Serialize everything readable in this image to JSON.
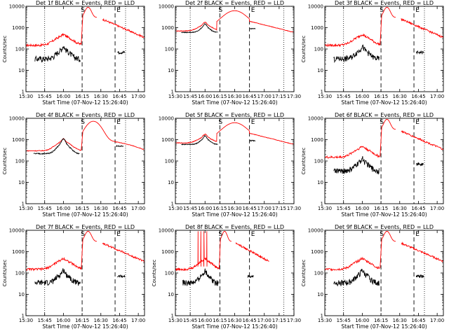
{
  "chart_data": [
    {
      "type": "line",
      "title": "Det 1f BLACK = Events, RED = LLD",
      "xlabel": "Start Time (07-Nov-12 15:26:40)",
      "ylabel": "Counts/sec",
      "y_scale": "log",
      "ylim": [
        1,
        10000
      ],
      "xlim": [
        15.5,
        17.083
      ],
      "xticks": [
        "15:30",
        "15:45",
        "16:00",
        "16:15",
        "16:30",
        "16:45",
        "17:00"
      ],
      "markers": [
        "S",
        "E"
      ],
      "dotted_x": [
        15.75,
        16.83
      ],
      "dashed_x": [
        16.25,
        16.69
      ],
      "shape": "A",
      "series": [
        {
          "name": "RED = LLD",
          "color": "#ff0000"
        },
        {
          "name": "BLACK = Events",
          "color": "#000000"
        }
      ]
    },
    {
      "type": "line",
      "title": "Det 2f BLACK = Events, RED = LLD",
      "xlabel": "Start Time (07-Nov-12 15:26:40)",
      "ylabel": "",
      "y_scale": "log",
      "ylim": [
        1,
        10000
      ],
      "xlim": [
        15.5,
        17.5
      ],
      "xticks": [
        "15:30",
        "15:45",
        "16:00",
        "16:15",
        "16:30",
        "16:45",
        "17:00",
        "17:15",
        "17:30"
      ],
      "markers": [
        "S",
        "E"
      ],
      "dotted_x": [
        15.75,
        17.33
      ],
      "dashed_x": [
        16.25,
        16.75
      ],
      "shape": "B",
      "series": [
        {
          "name": "RED = LLD",
          "color": "#ff0000"
        },
        {
          "name": "BLACK = Events",
          "color": "#000000"
        }
      ]
    },
    {
      "type": "line",
      "title": "Det 3f BLACK = Events, RED = LLD",
      "xlabel": "Start Time (07-Nov-12 15:26:40)",
      "ylabel": "Counts/sec",
      "y_scale": "log",
      "ylim": [
        1,
        10000
      ],
      "xlim": [
        15.5,
        17.083
      ],
      "xticks": [
        "15:30",
        "15:45",
        "16:00",
        "16:15",
        "16:30",
        "16:45",
        "17:00"
      ],
      "markers": [
        "S",
        "E"
      ],
      "dotted_x": [
        15.75,
        16.83
      ],
      "dashed_x": [
        16.25,
        16.69
      ],
      "shape": "A",
      "series": [
        {
          "name": "RED = LLD",
          "color": "#ff0000"
        },
        {
          "name": "BLACK = Events",
          "color": "#000000"
        }
      ]
    },
    {
      "type": "line",
      "title": "Det 4f BLACK = Events, RED = LLD",
      "xlabel": "Start Time (07-Nov-12 15:26:40)",
      "ylabel": "Counts/sec",
      "y_scale": "log",
      "ylim": [
        1,
        10000
      ],
      "xlim": [
        15.5,
        17.083
      ],
      "xticks": [
        "15:30",
        "15:45",
        "16:00",
        "16:15",
        "16:30",
        "16:45",
        "17:00"
      ],
      "markers": [
        "S",
        "E"
      ],
      "dotted_x": [
        15.75,
        16.83
      ],
      "dashed_x": [
        16.25,
        16.69
      ],
      "shape": "C",
      "series": [
        {
          "name": "RED = LLD",
          "color": "#ff0000"
        },
        {
          "name": "BLACK = Events",
          "color": "#000000"
        }
      ]
    },
    {
      "type": "line",
      "title": "Det 5f BLACK = Events, RED = LLD",
      "xlabel": "Start Time (07-Nov-12 15:26:40)",
      "ylabel": "",
      "y_scale": "log",
      "ylim": [
        1,
        10000
      ],
      "xlim": [
        15.5,
        17.5
      ],
      "xticks": [
        "15:30",
        "15:45",
        "16:00",
        "16:15",
        "16:30",
        "16:45",
        "17:00",
        "17:15",
        "17:30"
      ],
      "markers": [
        "S",
        "E"
      ],
      "dotted_x": [
        15.75,
        17.33
      ],
      "dashed_x": [
        16.25,
        16.75
      ],
      "shape": "B",
      "series": [
        {
          "name": "RED = LLD",
          "color": "#ff0000"
        },
        {
          "name": "BLACK = Events",
          "color": "#000000"
        }
      ]
    },
    {
      "type": "line",
      "title": "Det 6f BLACK = Events, RED = LLD",
      "xlabel": "Start Time (07-Nov-12 15:26:40)",
      "ylabel": "Counts/sec",
      "y_scale": "log",
      "ylim": [
        1,
        10000
      ],
      "xlim": [
        15.5,
        17.083
      ],
      "xticks": [
        "15:30",
        "15:45",
        "16:00",
        "16:15",
        "16:30",
        "16:45",
        "17:00"
      ],
      "markers": [
        "S",
        "E"
      ],
      "dotted_x": [
        15.75,
        16.83
      ],
      "dashed_x": [
        16.25,
        16.69
      ],
      "shape": "A",
      "series": [
        {
          "name": "RED = LLD",
          "color": "#ff0000"
        },
        {
          "name": "BLACK = Events",
          "color": "#000000"
        }
      ]
    },
    {
      "type": "line",
      "title": "Det 7f BLACK = Events, RED = LLD",
      "xlabel": "Start Time (07-Nov-12 15:26:40)",
      "ylabel": "Counts/sec",
      "y_scale": "log",
      "ylim": [
        1,
        10000
      ],
      "xlim": [
        15.5,
        17.083
      ],
      "xticks": [
        "15:30",
        "15:45",
        "16:00",
        "16:15",
        "16:30",
        "16:45",
        "17:00"
      ],
      "markers": [
        "S",
        "E"
      ],
      "dotted_x": [
        15.75,
        16.83
      ],
      "dashed_x": [
        16.25,
        16.69
      ],
      "shape": "A",
      "series": [
        {
          "name": "RED = LLD",
          "color": "#ff0000"
        },
        {
          "name": "BLACK = Events",
          "color": "#000000"
        }
      ]
    },
    {
      "type": "line",
      "title": "Det 8f BLACK = Events, RED = LLD",
      "xlabel": "Start Time (07-Nov-12 15:26:40)",
      "ylabel": "Counts/sec",
      "y_scale": "log",
      "ylim": [
        1,
        10000
      ],
      "xlim": [
        15.5,
        17.5
      ],
      "xticks": [
        "15:30",
        "15:45",
        "16:00",
        "16:15",
        "16:30",
        "16:45",
        "17:00",
        "17:15",
        "17:30"
      ],
      "markers": [
        "S",
        "E"
      ],
      "dotted_x": [
        15.75,
        17.33
      ],
      "dashed_x": [
        16.25,
        16.75
      ],
      "shape": "D",
      "series": [
        {
          "name": "RED = LLD",
          "color": "#ff0000"
        },
        {
          "name": "BLACK = Events",
          "color": "#000000"
        }
      ]
    },
    {
      "type": "line",
      "title": "Det 9f BLACK = Events, RED = LLD",
      "xlabel": "Start Time (07-Nov-12 15:26:40)",
      "ylabel": "Counts/sec",
      "y_scale": "log",
      "ylim": [
        1,
        10000
      ],
      "xlim": [
        15.5,
        17.083
      ],
      "xticks": [
        "15:30",
        "15:45",
        "16:00",
        "16:15",
        "16:30",
        "16:45",
        "17:00"
      ],
      "markers": [
        "S",
        "E"
      ],
      "dotted_x": [
        15.75,
        16.83
      ],
      "dashed_x": [
        16.25,
        16.69
      ],
      "shape": "A",
      "series": [
        {
          "name": "RED = LLD",
          "color": "#ff0000"
        },
        {
          "name": "BLACK = Events",
          "color": "#000000"
        }
      ]
    }
  ]
}
